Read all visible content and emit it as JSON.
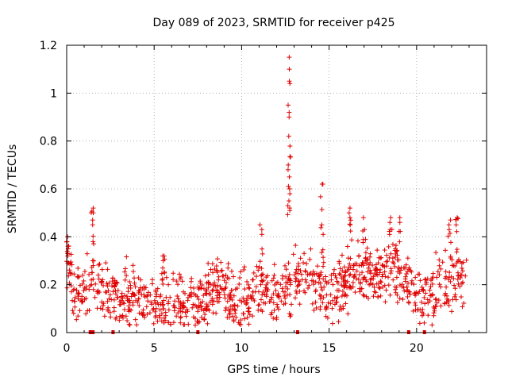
{
  "chart_data": {
    "type": "scatter",
    "title": "Day 089 of 2023, SRMTID for receiver p425",
    "xlabel": "GPS time / hours",
    "ylabel": "SRMTID / TECUs",
    "xlim": [
      0,
      24
    ],
    "ylim": [
      0,
      1.2
    ],
    "xticks": [
      0,
      5,
      10,
      15,
      20
    ],
    "xtick_labels": [
      "0",
      "5",
      "10",
      "15",
      "20"
    ],
    "yticks": [
      0,
      0.2,
      0.4,
      0.6,
      0.8,
      1.0,
      1.2
    ],
    "ytick_labels": [
      "0",
      "0.2",
      "0.4",
      "0.6",
      "0.8",
      "1",
      "1.2"
    ],
    "grid": true,
    "marker": "+",
    "color": "#e00000",
    "series": [
      {
        "name": "SRMTID",
        "x_start": 0.0,
        "x_end": 22.85,
        "count": 1100,
        "baseline": [
          [
            0.0,
            0.3
          ],
          [
            0.5,
            0.16
          ],
          [
            1.0,
            0.15
          ],
          [
            1.5,
            0.22
          ],
          [
            2.0,
            0.19
          ],
          [
            3.0,
            0.14
          ],
          [
            4.0,
            0.15
          ],
          [
            5.0,
            0.12
          ],
          [
            6.0,
            0.13
          ],
          [
            7.0,
            0.12
          ],
          [
            8.0,
            0.14
          ],
          [
            8.8,
            0.22
          ],
          [
            9.5,
            0.12
          ],
          [
            10.0,
            0.11
          ],
          [
            11.0,
            0.19
          ],
          [
            12.0,
            0.15
          ],
          [
            13.0,
            0.22
          ],
          [
            14.0,
            0.23
          ],
          [
            15.0,
            0.17
          ],
          [
            16.0,
            0.21
          ],
          [
            17.0,
            0.26
          ],
          [
            18.0,
            0.25
          ],
          [
            19.0,
            0.26
          ],
          [
            20.0,
            0.15
          ],
          [
            21.0,
            0.18
          ],
          [
            22.0,
            0.21
          ],
          [
            22.85,
            0.24
          ]
        ],
        "spread": 0.085
      }
    ],
    "peaks": [
      {
        "x": 0.05,
        "values": [
          0.4,
          0.38,
          0.35,
          0.33
        ]
      },
      {
        "x": 1.5,
        "values": [
          0.52,
          0.5,
          0.47,
          0.45,
          0.38
        ]
      },
      {
        "x": 5.5,
        "values": [
          0.32,
          0.3
        ]
      },
      {
        "x": 11.1,
        "values": [
          0.45,
          0.43,
          0.41
        ]
      },
      {
        "x": 12.7,
        "values": [
          1.15,
          1.1,
          1.05,
          1.04,
          0.95,
          0.9,
          0.82,
          0.7,
          0.68,
          0.65,
          0.6,
          0.58,
          0.55,
          0.53,
          0.52,
          0.51
        ]
      },
      {
        "x": 14.6,
        "values": [
          0.62,
          0.62,
          0.45,
          0.41
        ]
      },
      {
        "x": 16.2,
        "values": [
          0.52,
          0.5,
          0.48,
          0.45
        ]
      },
      {
        "x": 17.0,
        "values": [
          0.48,
          0.43
        ]
      },
      {
        "x": 18.5,
        "values": [
          0.48,
          0.46,
          0.43
        ]
      },
      {
        "x": 19.0,
        "values": [
          0.48,
          0.46
        ]
      },
      {
        "x": 21.9,
        "values": [
          0.47,
          0.45,
          0.43
        ]
      },
      {
        "x": 22.3,
        "values": [
          0.48,
          0.45
        ]
      }
    ],
    "gaps_marked_on_axis": [
      1.35,
      1.45,
      1.5,
      2.65,
      7.5,
      13.2,
      19.55,
      20.45
    ]
  }
}
